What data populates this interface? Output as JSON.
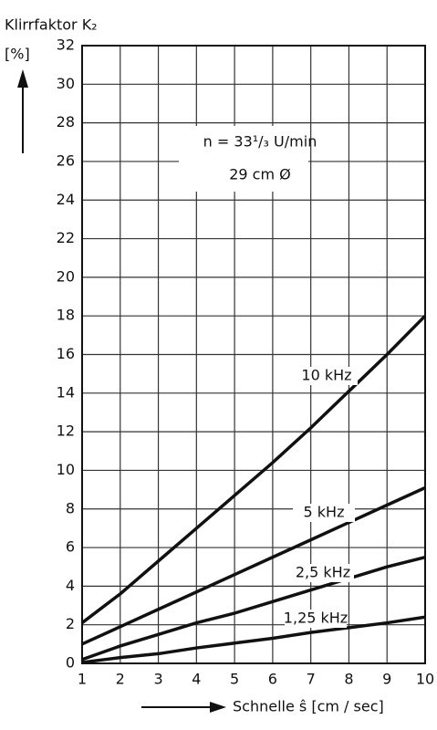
{
  "chart_data": {
    "type": "line",
    "y_label": "Klirrfaktor K₂",
    "y_unit": "[%]",
    "x_label": "Schnelle ŝ [cm / sec]",
    "annotations": [
      "n = 33¹/₃ U/min",
      "29 cm Ø"
    ],
    "x": [
      1,
      2,
      3,
      4,
      5,
      6,
      7,
      8,
      9,
      10
    ],
    "series": [
      {
        "name": "10 kHz",
        "color": "#111111",
        "values": [
          2.1,
          3.6,
          5.3,
          7.0,
          8.7,
          10.4,
          12.2,
          14.1,
          16.0,
          18.0
        ]
      },
      {
        "name": "5 kHz",
        "color": "#111111",
        "values": [
          1.0,
          1.9,
          2.8,
          3.7,
          4.6,
          5.5,
          6.4,
          7.3,
          8.2,
          9.1
        ]
      },
      {
        "name": "2,5 kHz",
        "color": "#111111",
        "values": [
          0.2,
          0.9,
          1.5,
          2.1,
          2.6,
          3.2,
          3.8,
          4.4,
          5.0,
          5.5
        ]
      },
      {
        "name": "1,25 kHz",
        "color": "#111111",
        "values": [
          0.05,
          0.3,
          0.5,
          0.8,
          1.05,
          1.3,
          1.6,
          1.85,
          2.1,
          2.4
        ]
      }
    ],
    "xlim": [
      1,
      10
    ],
    "xticks": [
      1,
      2,
      3,
      4,
      5,
      6,
      7,
      8,
      9,
      10
    ],
    "ylim": [
      0,
      32
    ],
    "yticks": [
      0,
      2,
      4,
      6,
      8,
      10,
      12,
      14,
      16,
      18,
      20,
      22,
      24,
      26,
      28,
      30,
      32
    ],
    "grid": true
  }
}
